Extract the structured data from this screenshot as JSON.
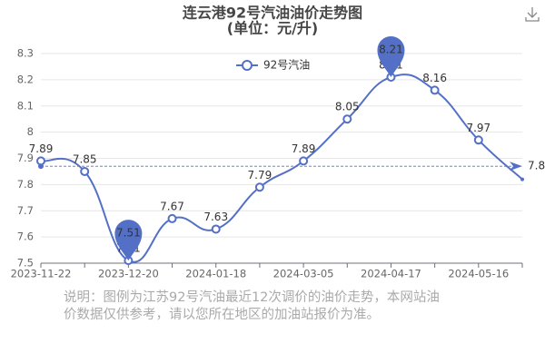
{
  "chart_data": {
    "type": "line",
    "title": "连云港92号汽油油价走势图",
    "subtitle": "(单位：元/升)",
    "categories": [
      "2023-11-22",
      null,
      "2023-12-20",
      null,
      "2024-01-18",
      null,
      "2024-03-05",
      null,
      "2024-04-17",
      null,
      "2024-05-16",
      null
    ],
    "series": [
      {
        "name": "92号汽油",
        "color": "#5470c6",
        "values": [
          7.89,
          7.85,
          7.51,
          7.67,
          7.63,
          7.79,
          7.89,
          8.05,
          8.21,
          8.16,
          7.97,
          7.82
        ]
      }
    ],
    "average": 7.87,
    "ylim": [
      7.5,
      8.3
    ],
    "yticks": [
      7.5,
      7.6,
      7.7,
      7.8,
      7.9,
      8,
      8.1,
      8.2,
      8.3
    ],
    "grid": true,
    "note": [
      "说明：图例为江苏92号汽油最近12次调价的油价走势，本网站油",
      "价数据仅供参考，请以您所在地区的加油站报价为准。"
    ]
  }
}
